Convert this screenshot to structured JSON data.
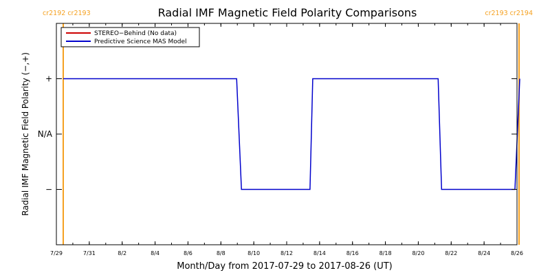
{
  "chart_data": {
    "type": "line",
    "title": "Radial IMF Magnetic Field Polarity Comparisons",
    "xlabel": "Month/Day from 2017-07-29 to 2017-08-26 (UT)",
    "ylabel": "Radial IMF Magnetic Field Polarity (−,+)",
    "xlim": [
      "2017-07-29",
      "2017-08-26"
    ],
    "x_ticks": [
      {
        "date": "2017-07-29",
        "label": "7/29"
      },
      {
        "date": "2017-07-31",
        "label": "7/31"
      },
      {
        "date": "2017-08-02",
        "label": "8/2"
      },
      {
        "date": "2017-08-04",
        "label": "8/4"
      },
      {
        "date": "2017-08-06",
        "label": "8/6"
      },
      {
        "date": "2017-08-08",
        "label": "8/8"
      },
      {
        "date": "2017-08-10",
        "label": "8/10"
      },
      {
        "date": "2017-08-12",
        "label": "8/12"
      },
      {
        "date": "2017-08-14",
        "label": "8/14"
      },
      {
        "date": "2017-08-16",
        "label": "8/16"
      },
      {
        "date": "2017-08-18",
        "label": "8/18"
      },
      {
        "date": "2017-08-20",
        "label": "8/20"
      },
      {
        "date": "2017-08-22",
        "label": "8/22"
      },
      {
        "date": "2017-08-24",
        "label": "8/24"
      },
      {
        "date": "2017-08-26",
        "label": "8/26"
      }
    ],
    "y_ticks": [
      {
        "value": 1,
        "label": "+"
      },
      {
        "value": 0,
        "label": "N/A"
      },
      {
        "value": -1,
        "label": "−"
      }
    ],
    "ylim": [
      -2,
      2
    ],
    "grid": false,
    "legend": {
      "placement": "top-left"
    },
    "series": [
      {
        "name": "STEREO−Behind (No data)",
        "color": "#cc0000",
        "x": [],
        "y": []
      },
      {
        "name": "Predictive Science MAS Model",
        "color": "#0000cc",
        "x": [
          "2017-07-29T10:00",
          "2017-08-08T23:00",
          "2017-08-09T06:00",
          "2017-08-13T10:00",
          "2017-08-13T14:00",
          "2017-08-21T05:00",
          "2017-08-21T10:00",
          "2017-08-25T21:00",
          "2017-08-26T04:00"
        ],
        "y": [
          1,
          1,
          -1,
          -1,
          1,
          1,
          -1,
          -1,
          1
        ]
      }
    ],
    "annotations": [
      {
        "type": "vline",
        "date": "2017-07-29T10:00",
        "color": "#f5a01e",
        "label": "cr2192 cr2193",
        "label_side": "top-left"
      },
      {
        "type": "vline",
        "date": "2017-08-26T03:00",
        "color": "#f5a01e",
        "label": "cr2193 cr2194",
        "label_side": "top-right"
      }
    ]
  }
}
